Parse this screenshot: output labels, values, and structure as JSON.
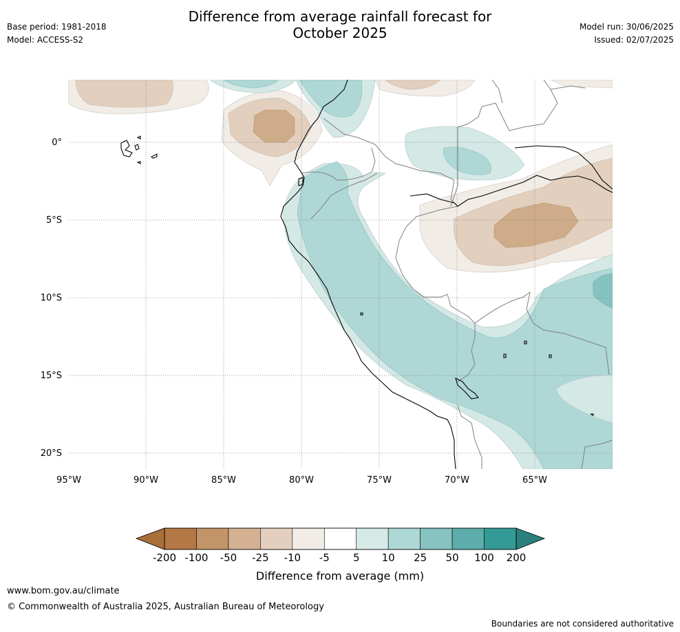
{
  "header": {
    "title_line1": "Difference from average rainfall forecast for",
    "title_line2": "October 2025",
    "base_period": "Base period: 1981-2018",
    "model": "Model: ACCESS-S2",
    "model_run": "Model run: 30/06/2025",
    "issued": "Issued: 02/07/2025"
  },
  "map": {
    "lat_labels": [
      "0°",
      "5°S",
      "10°S",
      "15°S",
      "20°S"
    ],
    "lon_labels": [
      "95°W",
      "90°W",
      "85°W",
      "80°W",
      "75°W",
      "70°W",
      "65°W"
    ],
    "colors": {
      "dry_strong": "#cfac89",
      "dry_mid": "#e2cfbe",
      "dry_light": "#f1ece6",
      "wet_light": "#d4e8e6",
      "wet_mid": "#aed7d5",
      "wet_strong": "#85c3c1"
    }
  },
  "colorbar": {
    "label": "Difference from average (mm)",
    "ticks": [
      "-200",
      "-100",
      "-50",
      "-25",
      "-10",
      "-5",
      "5",
      "10",
      "25",
      "50",
      "100",
      "200"
    ],
    "colors": [
      "#a86f3a",
      "#b37845",
      "#c29467",
      "#d3b192",
      "#e4cfbe",
      "#f1ece6",
      "#ffffff",
      "#d5e9e6",
      "#aed8d6",
      "#86c3c1",
      "#5cadab",
      "#349a96",
      "#2b807c"
    ]
  },
  "footer": {
    "website": "www.bom.gov.au/climate",
    "copyright": "© Commonwealth of Australia 2025, Australian Bureau of Meteorology",
    "disclaimer": "Boundaries are not considered authoritative"
  }
}
